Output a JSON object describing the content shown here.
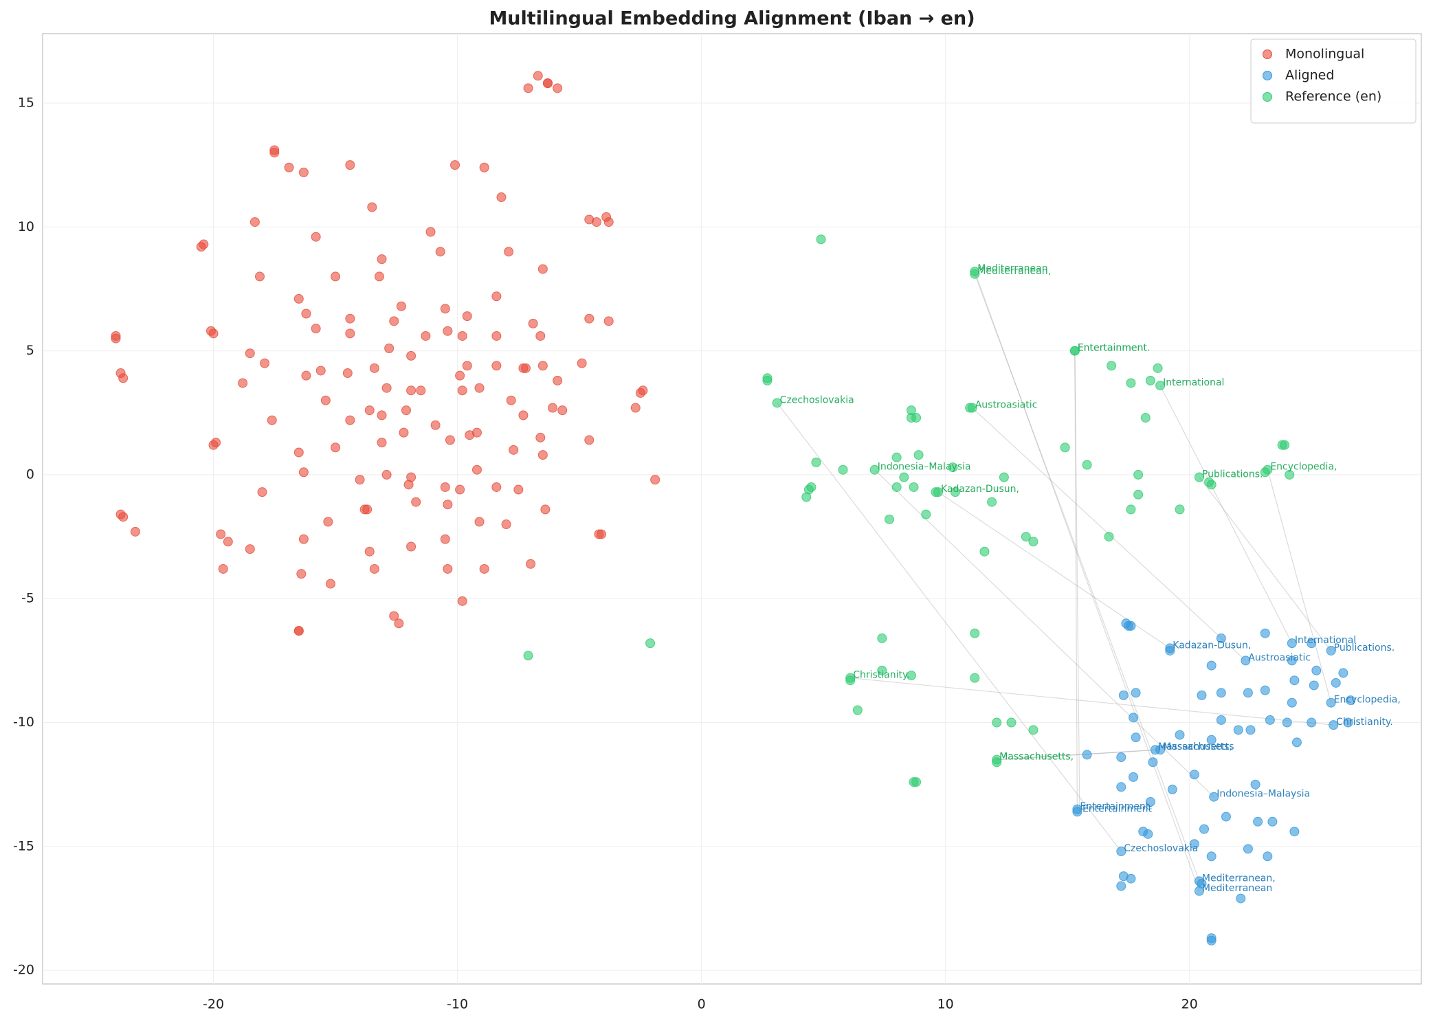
{
  "chart_data": {
    "type": "scatter",
    "title": "Multilingual Embedding Alignment (Iban → en)",
    "xlim": [
      -27,
      29.5
    ],
    "ylim": [
      -20.55,
      17.8
    ],
    "xticks": [
      -20,
      -10,
      0,
      10,
      20
    ],
    "yticks": [
      -20,
      -15,
      -10,
      -5,
      0,
      5,
      10,
      15
    ],
    "grid": true,
    "legend": "upper right",
    "series": [
      {
        "name": "Monolingual",
        "color": "#e74c3c",
        "x": [
          -6.7,
          -7.1,
          -6.3,
          -5.9,
          -6.3,
          -17.5,
          -17.5,
          -16.9,
          -16.3,
          -14.4,
          -10.1,
          -8.9,
          -8.2,
          -13.5,
          -18.3,
          -20.4,
          -20.5,
          -15.8,
          -11.1,
          -10.7,
          -7.9,
          -13.1,
          -4.6,
          -4.3,
          -3.9,
          -3.8,
          -6.5,
          -18.1,
          -15.0,
          -13.2,
          -8.4,
          -16.5,
          -12.3,
          -10.5,
          -16.2,
          -9.6,
          -14.4,
          -12.6,
          -4.6,
          -3.8,
          -6.9,
          -15.8,
          -10.4,
          -20.1,
          -20.0,
          -14.4,
          -11.3,
          -9.8,
          -8.4,
          -6.6,
          -24.0,
          -24.0,
          -12.8,
          -18.5,
          -11.9,
          -17.9,
          -4.9,
          -9.6,
          -8.4,
          -6.5,
          -13.4,
          -7.3,
          -7.2,
          -15.6,
          -14.5,
          -23.8,
          -23.7,
          -16.2,
          -9.9,
          -5.9,
          -18.8,
          -9.1,
          -12.9,
          -11.9,
          -11.5,
          -9.8,
          -2.4,
          -2.5,
          -15.4,
          -7.8,
          -2.7,
          -6.1,
          -13.6,
          -12.1,
          -5.7,
          -7.3,
          -13.1,
          -17.6,
          -14.4,
          -10.9,
          -12.2,
          -9.2,
          -9.5,
          -6.6,
          -10.3,
          -4.6,
          -13.1,
          -20.0,
          -19.9,
          -15.0,
          -7.7,
          -16.5,
          -6.5,
          -16.3,
          -9.2,
          -12.9,
          -11.9,
          -14.0,
          -1.9,
          -12.0,
          -8.4,
          -10.5,
          -9.9,
          -7.5,
          -18.0,
          -11.7,
          -10.4,
          -13.8,
          -13.7,
          -6.4,
          -23.8,
          -23.7,
          -15.3,
          -9.1,
          -8.0,
          -23.2,
          -4.2,
          -4.1,
          -19.7,
          -16.3,
          -10.5,
          -19.4,
          -11.9,
          -18.5,
          -13.6,
          -7.0,
          -19.6,
          -13.4,
          -10.4,
          -8.9,
          -16.4,
          -15.2,
          -9.8,
          -12.6,
          -12.4,
          -16.5,
          -16.5
        ],
        "y": [
          16.1,
          15.6,
          15.8,
          15.6,
          15.8,
          13.0,
          13.1,
          12.4,
          12.2,
          12.5,
          12.5,
          12.4,
          11.2,
          10.8,
          10.2,
          9.3,
          9.2,
          9.6,
          9.8,
          9.0,
          9.0,
          8.7,
          10.3,
          10.2,
          10.4,
          10.2,
          8.3,
          8.0,
          8.0,
          8.0,
          7.2,
          7.1,
          6.8,
          6.7,
          6.5,
          6.4,
          6.3,
          6.2,
          6.3,
          6.2,
          6.1,
          5.9,
          5.8,
          5.8,
          5.7,
          5.7,
          5.6,
          5.6,
          5.6,
          5.6,
          5.6,
          5.5,
          5.1,
          4.9,
          4.8,
          4.5,
          4.5,
          4.4,
          4.4,
          4.4,
          4.3,
          4.3,
          4.3,
          4.2,
          4.1,
          4.1,
          3.9,
          4.0,
          4.0,
          3.8,
          3.7,
          3.5,
          3.5,
          3.4,
          3.4,
          3.4,
          3.4,
          3.3,
          3.0,
          3.0,
          2.7,
          2.7,
          2.6,
          2.6,
          2.6,
          2.4,
          2.4,
          2.2,
          2.2,
          2.0,
          1.7,
          1.7,
          1.6,
          1.5,
          1.4,
          1.4,
          1.3,
          1.2,
          1.3,
          1.1,
          1.0,
          0.9,
          0.8,
          0.1,
          0.2,
          0.0,
          -0.1,
          -0.2,
          -0.2,
          -0.4,
          -0.5,
          -0.5,
          -0.6,
          -0.6,
          -0.7,
          -1.1,
          -1.2,
          -1.4,
          -1.4,
          -1.4,
          -1.6,
          -1.7,
          -1.9,
          -1.9,
          -2.0,
          -2.3,
          -2.4,
          -2.4,
          -2.4,
          -2.6,
          -2.6,
          -2.7,
          -2.9,
          -3.0,
          -3.1,
          -3.6,
          -3.8,
          -3.8,
          -3.8,
          -3.8,
          -4.0,
          -4.4,
          -5.1,
          -5.7,
          -6.0,
          -6.3,
          -6.3
        ],
        "labels": []
      },
      {
        "name": "Aligned",
        "color": "#3498db",
        "x": [
          17.4,
          17.5,
          17.6,
          21.3,
          23.1,
          19.2,
          19.2,
          24.2,
          25.0,
          20.9,
          22.3,
          24.2,
          25.2,
          26.3,
          25.8,
          17.3,
          17.8,
          20.5,
          21.3,
          22.4,
          23.1,
          24.3,
          25.1,
          26.0,
          24.2,
          25.8,
          26.6,
          17.7,
          21.3,
          22.0,
          22.5,
          23.3,
          24.0,
          25.0,
          25.9,
          26.5,
          17.8,
          19.6,
          20.9,
          24.4,
          18.6,
          18.8,
          15.8,
          17.2,
          18.5,
          20.2,
          17.7,
          17.2,
          19.3,
          22.7,
          21.0,
          18.4,
          15.4,
          15.4,
          21.5,
          22.8,
          23.4,
          18.1,
          18.3,
          20.6,
          24.3,
          20.2,
          22.4,
          17.2,
          20.9,
          23.2,
          17.3,
          17.6,
          17.2,
          20.4,
          20.5,
          20.4,
          22.1,
          20.9,
          20.9
        ],
        "y": [
          -6.0,
          -6.1,
          -6.1,
          -6.6,
          -6.4,
          -7.0,
          -7.1,
          -6.8,
          -6.8,
          -7.7,
          -7.5,
          -7.5,
          -7.9,
          -8.0,
          -7.1,
          -8.9,
          -8.8,
          -8.9,
          -8.8,
          -8.8,
          -8.7,
          -8.3,
          -8.5,
          -8.4,
          -9.2,
          -9.2,
          -9.1,
          -9.8,
          -9.9,
          -10.3,
          -10.3,
          -9.9,
          -10.0,
          -10.0,
          -10.1,
          -10.0,
          -10.6,
          -10.5,
          -10.7,
          -10.8,
          -11.1,
          -11.1,
          -11.3,
          -11.4,
          -11.6,
          -12.1,
          -12.2,
          -12.6,
          -12.7,
          -12.5,
          -13.0,
          -13.2,
          -13.5,
          -13.6,
          -13.8,
          -14.0,
          -14.0,
          -14.4,
          -14.5,
          -14.3,
          -14.4,
          -14.9,
          -15.1,
          -15.2,
          -15.4,
          -15.4,
          -16.2,
          -16.3,
          -16.6,
          -16.4,
          -16.5,
          -16.8,
          -17.1,
          -18.7,
          -18.8
        ],
        "labels": [
          {
            "text": "International",
            "x": 24.2,
            "y": -6.8
          },
          {
            "text": "Kadazan-Dusun,",
            "x": 19.2,
            "y": -7.0
          },
          {
            "text": "Austroasiatic",
            "x": 22.3,
            "y": -7.5
          },
          {
            "text": "Publications.",
            "x": 25.8,
            "y": -7.1
          },
          {
            "text": "Encyclopedia,",
            "x": 25.8,
            "y": -9.2
          },
          {
            "text": "Christianity.",
            "x": 25.9,
            "y": -10.1
          },
          {
            "text": "Massachusetts,",
            "x": 18.6,
            "y": -11.1
          },
          {
            "text": "Massachusetts",
            "x": 18.8,
            "y": -11.1
          },
          {
            "text": "Indonesia–Malaysia",
            "x": 21.0,
            "y": -13.0
          },
          {
            "text": "Entertainment.",
            "x": 15.4,
            "y": -13.5
          },
          {
            "text": "Entertainment",
            "x": 15.5,
            "y": -13.6
          },
          {
            "text": "Czechoslovakia",
            "x": 17.2,
            "y": -15.2
          },
          {
            "text": "Mediterranean,",
            "x": 20.4,
            "y": -16.4
          },
          {
            "text": "Mediterranean",
            "x": 20.4,
            "y": -16.8
          }
        ]
      },
      {
        "name": "Reference (en)",
        "color": "#2ecc71",
        "x": [
          4.9,
          11.2,
          11.2,
          15.3,
          15.3,
          16.8,
          18.7,
          17.6,
          18.4,
          18.8,
          2.7,
          2.7,
          3.1,
          11.1,
          11.0,
          8.6,
          8.6,
          8.8,
          18.2,
          23.9,
          23.8,
          14.9,
          8.0,
          8.9,
          4.7,
          15.8,
          5.8,
          7.1,
          10.3,
          23.1,
          23.2,
          20.4,
          17.9,
          24.1,
          12.4,
          8.3,
          20.8,
          20.9,
          4.5,
          8.0,
          8.7,
          4.4,
          9.6,
          9.7,
          10.4,
          4.3,
          17.9,
          11.9,
          17.6,
          19.6,
          9.2,
          7.7,
          13.3,
          16.7,
          13.6,
          11.6,
          -7.1,
          -2.1,
          11.2,
          7.4,
          7.4,
          6.1,
          6.1,
          8.6,
          11.2,
          6.4,
          12.1,
          12.7,
          13.6,
          12.1,
          12.1,
          8.7,
          8.8
        ],
        "y": [
          9.5,
          8.2,
          8.1,
          5.0,
          5.0,
          4.4,
          4.3,
          3.7,
          3.8,
          3.6,
          3.9,
          3.8,
          2.9,
          2.7,
          2.7,
          2.6,
          2.3,
          2.3,
          2.3,
          1.2,
          1.2,
          1.1,
          0.7,
          0.8,
          0.5,
          0.4,
          0.2,
          0.2,
          0.3,
          0.1,
          0.2,
          -0.1,
          0.0,
          0.0,
          -0.1,
          -0.1,
          -0.3,
          -0.4,
          -0.5,
          -0.5,
          -0.5,
          -0.6,
          -0.7,
          -0.7,
          -0.7,
          -0.9,
          -0.8,
          -1.1,
          -1.4,
          -1.4,
          -1.6,
          -1.8,
          -2.5,
          -2.5,
          -2.7,
          -3.1,
          -7.3,
          -6.8,
          -6.4,
          -6.6,
          -7.9,
          -8.2,
          -8.3,
          -8.1,
          -8.2,
          -9.5,
          -10.0,
          -10.0,
          -10.3,
          -11.5,
          -11.6,
          -12.4,
          -12.4
        ],
        "labels": [
          {
            "text": "Mediterranean",
            "x": 11.2,
            "y": 8.2
          },
          {
            "text": "Mediterranean,",
            "x": 11.2,
            "y": 8.1
          },
          {
            "text": "Entertainment.",
            "x": 15.3,
            "y": 5.0
          },
          {
            "text": "Entertainment",
            "x": 15.3,
            "y": 5.0
          },
          {
            "text": "International",
            "x": 18.8,
            "y": 3.6
          },
          {
            "text": "Czechoslovakia",
            "x": 3.1,
            "y": 2.9
          },
          {
            "text": "Austroasiatic",
            "x": 11.1,
            "y": 2.7
          },
          {
            "text": "Publications.",
            "x": 20.4,
            "y": -0.1
          },
          {
            "text": "Encyclopedia,",
            "x": 23.2,
            "y": 0.2
          },
          {
            "text": "Indonesia–Malaysia",
            "x": 7.1,
            "y": 0.2
          },
          {
            "text": "Kadazan-Dusun,",
            "x": 9.7,
            "y": -0.7
          },
          {
            "text": "Christianity.",
            "x": 6.1,
            "y": -8.2
          },
          {
            "text": "Massachusetts,",
            "x": 12.1,
            "y": -11.5
          },
          {
            "text": "Massachusetts",
            "x": 12.1,
            "y": -11.5
          }
        ]
      }
    ]
  }
}
